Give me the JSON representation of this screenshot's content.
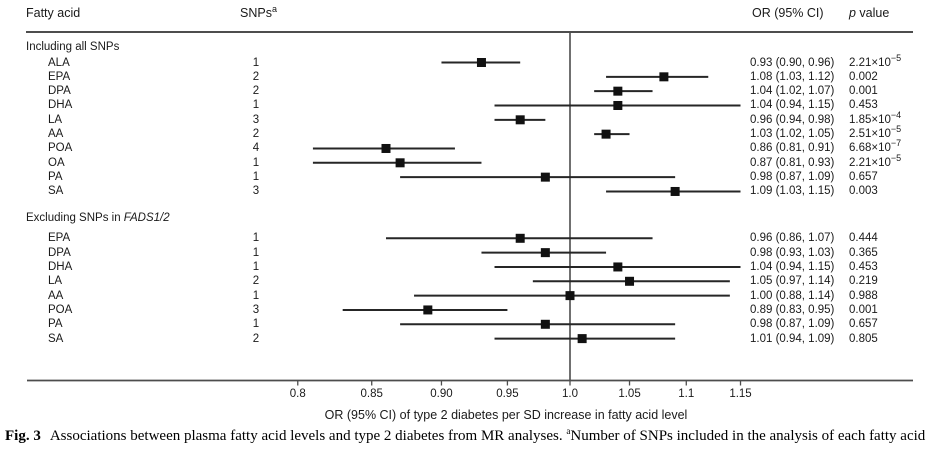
{
  "header": {
    "fatty_acid": "Fatty acid",
    "snps": "SNPs",
    "snps_sup": "a",
    "or_ci": "OR (95% CI)",
    "p_italic": "p",
    "p_rest": " value"
  },
  "chart_data": {
    "type": "forest",
    "x_scale": "log",
    "ref_line": 1.0,
    "xlim": [
      0.772,
      1.19
    ],
    "axis_ticks": [
      0.8,
      0.85,
      0.9,
      0.95,
      1.0,
      1.05,
      1.1,
      1.15
    ],
    "axis_tick_labels": [
      "0.8",
      "0.85",
      "0.90",
      "0.95",
      "1.0",
      "1.05",
      "1.1",
      "1.15"
    ],
    "xlabel": "OR (95% CI) of type 2 diabetes per SD increase in fatty acid level",
    "sections": [
      {
        "title": "Including all SNPs",
        "title_italic": "",
        "rows": [
          {
            "label": "ALA",
            "snps": "1",
            "or": 0.93,
            "ci_low": 0.9,
            "ci_high": 0.96,
            "or_text": "0.93 (0.90, 0.96)",
            "p_text": "2.21×10^−5"
          },
          {
            "label": "EPA",
            "snps": "2",
            "or": 1.08,
            "ci_low": 1.03,
            "ci_high": 1.12,
            "or_text": "1.08 (1.03, 1.12)",
            "p_text": "0.002"
          },
          {
            "label": "DPA",
            "snps": "2",
            "or": 1.04,
            "ci_low": 1.02,
            "ci_high": 1.07,
            "or_text": "1.04 (1.02, 1.07)",
            "p_text": "0.001"
          },
          {
            "label": "DHA",
            "snps": "1",
            "or": 1.04,
            "ci_low": 0.94,
            "ci_high": 1.15,
            "or_text": "1.04 (0.94, 1.15)",
            "p_text": "0.453"
          },
          {
            "label": "LA",
            "snps": "3",
            "or": 0.96,
            "ci_low": 0.94,
            "ci_high": 0.98,
            "or_text": "0.96 (0.94, 0.98)",
            "p_text": "1.85×10^−4"
          },
          {
            "label": "AA",
            "snps": "2",
            "or": 1.03,
            "ci_low": 1.02,
            "ci_high": 1.05,
            "or_text": "1.03 (1.02, 1.05)",
            "p_text": "2.51×10^−5"
          },
          {
            "label": "POA",
            "snps": "4",
            "or": 0.86,
            "ci_low": 0.81,
            "ci_high": 0.91,
            "or_text": "0.86 (0.81, 0.91)",
            "p_text": "6.68×10^−7"
          },
          {
            "label": "OA",
            "snps": "1",
            "or": 0.87,
            "ci_low": 0.81,
            "ci_high": 0.93,
            "or_text": "0.87 (0.81, 0.93)",
            "p_text": "2.21×10^−5"
          },
          {
            "label": "PA",
            "snps": "1",
            "or": 0.98,
            "ci_low": 0.87,
            "ci_high": 1.09,
            "or_text": "0.98 (0.87, 1.09)",
            "p_text": "0.657"
          },
          {
            "label": "SA",
            "snps": "3",
            "or": 1.09,
            "ci_low": 1.03,
            "ci_high": 1.15,
            "or_text": "1.09 (1.03, 1.15)",
            "p_text": "0.003"
          }
        ]
      },
      {
        "title": "Excluding SNPs in ",
        "title_italic": "FADS1/2",
        "rows": [
          {
            "label": "EPA",
            "snps": "1",
            "or": 0.96,
            "ci_low": 0.86,
            "ci_high": 1.07,
            "or_text": "0.96 (0.86, 1.07)",
            "p_text": "0.444"
          },
          {
            "label": "DPA",
            "snps": "1",
            "or": 0.98,
            "ci_low": 0.93,
            "ci_high": 1.03,
            "or_text": "0.98 (0.93, 1.03)",
            "p_text": "0.365"
          },
          {
            "label": "DHA",
            "snps": "1",
            "or": 1.04,
            "ci_low": 0.94,
            "ci_high": 1.15,
            "or_text": "1.04 (0.94, 1.15)",
            "p_text": "0.453"
          },
          {
            "label": "LA",
            "snps": "2",
            "or": 1.05,
            "ci_low": 0.97,
            "ci_high": 1.14,
            "or_text": "1.05 (0.97, 1.14)",
            "p_text": "0.219"
          },
          {
            "label": "AA",
            "snps": "1",
            "or": 1.0,
            "ci_low": 0.88,
            "ci_high": 1.14,
            "or_text": "1.00 (0.88, 1.14)",
            "p_text": "0.988"
          },
          {
            "label": "POA",
            "snps": "3",
            "or": 0.89,
            "ci_low": 0.83,
            "ci_high": 0.95,
            "or_text": "0.89 (0.83, 0.95)",
            "p_text": "0.001"
          },
          {
            "label": "PA",
            "snps": "1",
            "or": 0.98,
            "ci_low": 0.87,
            "ci_high": 1.09,
            "or_text": "0.98 (0.87, 1.09)",
            "p_text": "0.657"
          },
          {
            "label": "SA",
            "snps": "2",
            "or": 1.01,
            "ci_low": 0.94,
            "ci_high": 1.09,
            "or_text": "1.01 (0.94, 1.09)",
            "p_text": "0.805"
          }
        ]
      }
    ]
  },
  "caption": {
    "fig_label": "Fig. 3",
    "main_text": "Associations between plasma fatty acid levels and type 2 diabetes from MR analyses. ",
    "note_sup": "a",
    "note_text": "Number of SNPs included in the analysis of each fatty acid"
  },
  "colors": {
    "text": "#1a1a1a",
    "rule_line": "#4d4d4d",
    "ci_line": "#262626",
    "marker": "#111111"
  }
}
